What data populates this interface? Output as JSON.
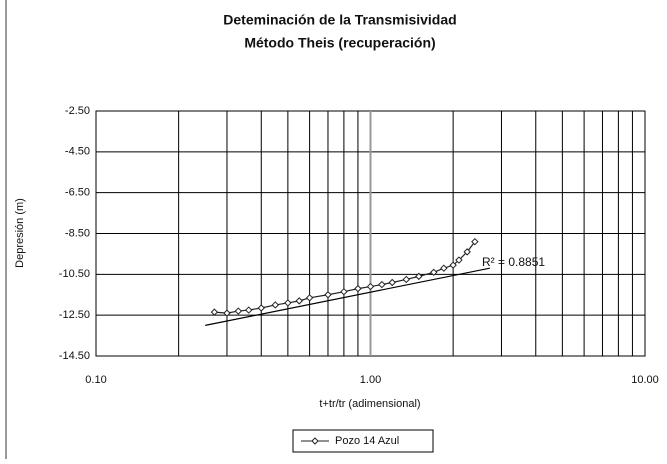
{
  "chart_data": {
    "type": "line",
    "title": "Deteminación de la Transmisividad",
    "subtitle": "Método Theis (recuperación)",
    "x_label": "t+tr/tr (adimensional)",
    "y_label": "Depresión (m)",
    "xscale": "log",
    "xlim": [
      0.1,
      10
    ],
    "xticks": [
      {
        "value": 0.1,
        "label": "0.10"
      },
      {
        "value": 1,
        "label": "1.00"
      },
      {
        "value": 10,
        "label": "10.00"
      }
    ],
    "xminor_ticks": [
      0.2,
      0.3,
      0.4,
      0.5,
      0.6,
      0.7,
      0.8,
      0.9,
      2,
      3,
      4,
      5,
      6,
      7,
      8,
      9
    ],
    "ylim": [
      -14.5,
      -2.5
    ],
    "yticks": [
      {
        "value": -2.5,
        "label": "-2.50"
      },
      {
        "value": -4.5,
        "label": "-4.50"
      },
      {
        "value": -6.5,
        "label": "-6.50"
      },
      {
        "value": -8.5,
        "label": "-8.50"
      },
      {
        "value": -10.5,
        "label": "-10.50"
      },
      {
        "value": -12.5,
        "label": "-12.50"
      },
      {
        "value": -14.5,
        "label": "-14.50"
      }
    ],
    "grid": true,
    "legend": "bottom",
    "series": [
      {
        "name": "Pozo 14 Azul",
        "color": "#222222",
        "x": [
          0.27,
          0.3,
          0.33,
          0.36,
          0.4,
          0.45,
          0.5,
          0.55,
          0.6,
          0.7,
          0.8,
          0.9,
          1.0,
          1.1,
          1.2,
          1.35,
          1.5,
          1.7,
          1.85,
          2.0,
          2.1,
          2.25,
          2.4
        ],
        "values": [
          -12.35,
          -12.4,
          -12.3,
          -12.25,
          -12.15,
          -12.0,
          -11.9,
          -11.8,
          -11.65,
          -11.5,
          -11.35,
          -11.2,
          -11.1,
          -11.0,
          -10.9,
          -10.75,
          -10.6,
          -10.4,
          -10.2,
          -10.05,
          -9.8,
          -9.4,
          -8.9
        ]
      }
    ],
    "trendline": {
      "x": [
        0.25,
        2.72
      ],
      "values": [
        -13.0,
        -10.2
      ]
    },
    "annotation": "R² = 0.8851"
  }
}
